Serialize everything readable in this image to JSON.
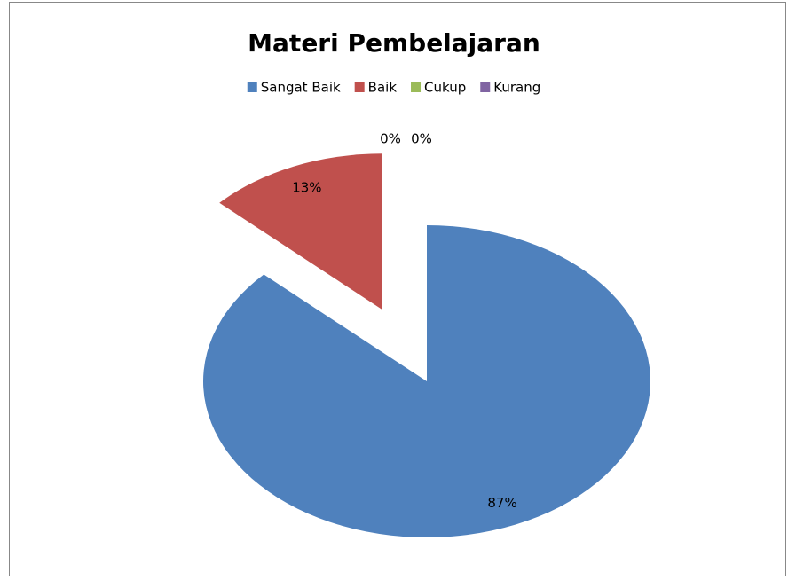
{
  "chart_data": {
    "type": "pie",
    "title": "Materi Pembelajaran",
    "categories": [
      "Sangat Baik",
      "Baik",
      "Cukup",
      "Kurang"
    ],
    "values": [
      87,
      13,
      0,
      0
    ],
    "value_labels": [
      "87%",
      "13%",
      "0%",
      "0%"
    ],
    "colors": [
      "#4f81bd",
      "#c0504d",
      "#9bbb59",
      "#8064a2"
    ],
    "legend": "top"
  }
}
